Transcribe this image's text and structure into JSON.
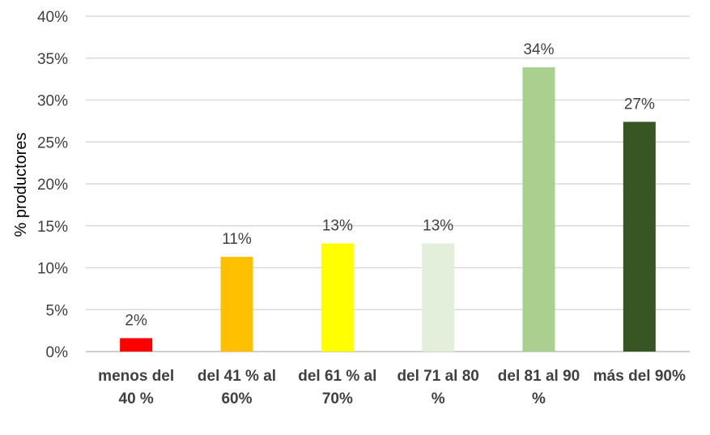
{
  "chart_data": {
    "type": "bar",
    "title": "",
    "xlabel": "",
    "ylabel": "% productores",
    "ylim": [
      0,
      40
    ],
    "yticks": [
      "0%",
      "5%",
      "10%",
      "15%",
      "20%",
      "25%",
      "30%",
      "35%",
      "40%"
    ],
    "grid": true,
    "legend": "none",
    "categories": [
      [
        "menos del",
        "40 %"
      ],
      [
        "del 41 % al",
        "60%"
      ],
      [
        "del 61 % al",
        "70%"
      ],
      [
        "del 71 al 80",
        "%"
      ],
      [
        "del 81 al 90",
        "%"
      ],
      [
        "más del 90%"
      ]
    ],
    "values": [
      1.6,
      11.3,
      12.9,
      12.9,
      33.9,
      27.4
    ],
    "data_labels": [
      "2%",
      "11%",
      "13%",
      "13%",
      "34%",
      "27%"
    ],
    "colors": [
      "#ff0000",
      "#ffc000",
      "#ffff00",
      "#e2efda",
      "#a9d08e",
      "#375623"
    ]
  }
}
